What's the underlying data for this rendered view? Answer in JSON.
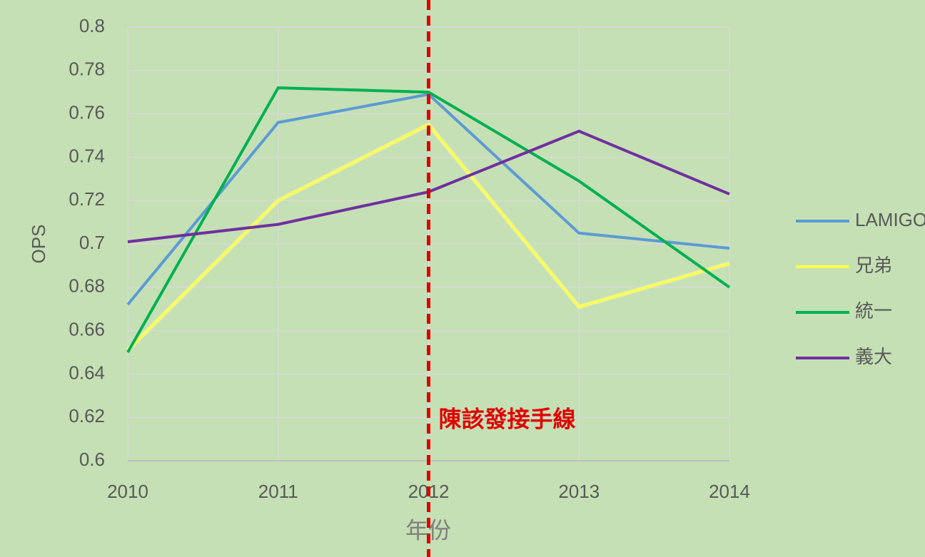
{
  "chart_data": {
    "type": "line",
    "x_label": "年份",
    "y_label": "OPS",
    "x": [
      2010,
      2011,
      2012,
      2013,
      2014
    ],
    "xlim": [
      2010,
      2014
    ],
    "xticks": [
      2010,
      2011,
      2012,
      2013,
      2014
    ],
    "ylim": [
      0.6,
      0.8
    ],
    "yticks": [
      0.6,
      0.62,
      0.64,
      0.66,
      0.68,
      0.7,
      0.72,
      0.74,
      0.76,
      0.78,
      0.8
    ],
    "grid": true,
    "legend": "right",
    "series": [
      {
        "name": "LAMIGO",
        "color": "#5b9bd5",
        "values": [
          0.672,
          0.756,
          0.769,
          0.705,
          0.698
        ]
      },
      {
        "name": "兄弟",
        "color": "#ffff4d",
        "values": [
          0.651,
          0.72,
          0.755,
          0.671,
          0.691
        ]
      },
      {
        "name": "統一",
        "color": "#00b050",
        "values": [
          0.65,
          0.772,
          0.77,
          0.729,
          0.68
        ]
      },
      {
        "name": "義大",
        "color": "#7030a0",
        "values": [
          0.701,
          0.709,
          0.724,
          0.752,
          0.723
        ]
      }
    ],
    "annotations": [
      {
        "x": 2012,
        "label": "陳該發接手線",
        "color": "#e00000"
      }
    ]
  }
}
